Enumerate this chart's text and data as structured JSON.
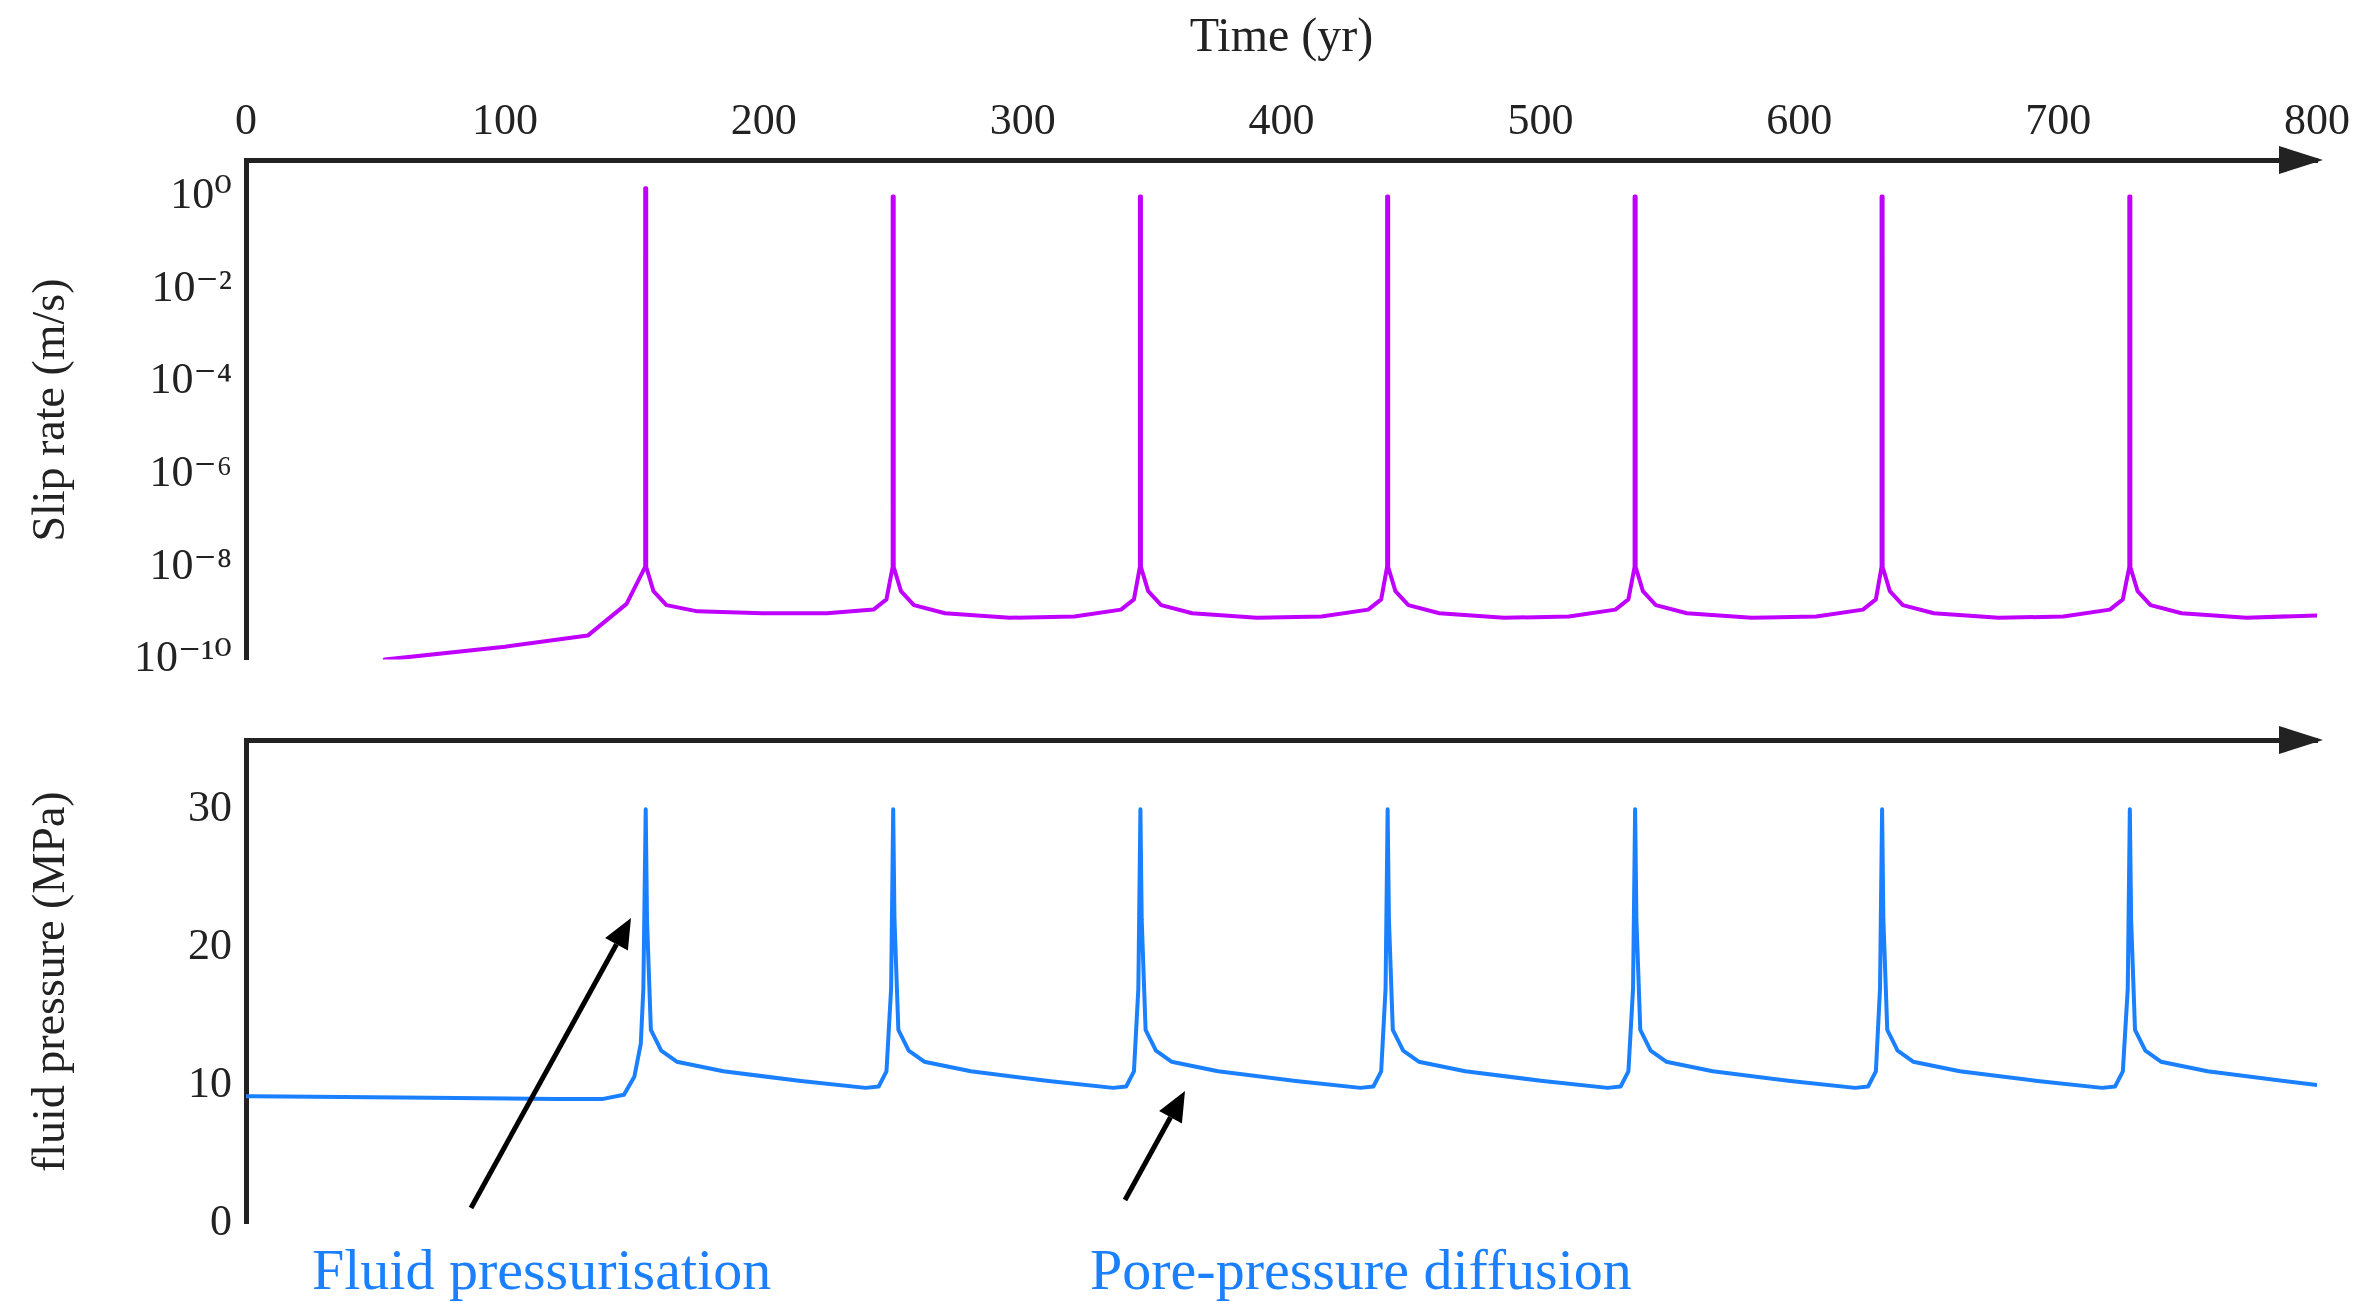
{
  "chart_data": [
    {
      "type": "line",
      "xlabel": "Time (yr)",
      "ylabel": "Slip rate (m/s)",
      "log": "y",
      "grid": false,
      "legend": false,
      "marker": "none",
      "line_style": "solid",
      "xlim": [
        0,
        800
      ],
      "xticks": [
        0,
        100,
        200,
        300,
        400,
        500,
        600,
        700,
        800
      ],
      "ylim": [
        1e-10,
        6
      ],
      "yticks": [
        {
          "value": 1e-10,
          "label": "10⁻¹⁰"
        },
        {
          "value": 1e-08,
          "label": "10⁻⁸"
        },
        {
          "value": 1e-06,
          "label": "10⁻⁶"
        },
        {
          "value": 0.0001,
          "label": "10⁻⁴"
        },
        {
          "value": 0.01,
          "label": "10⁻²"
        },
        {
          "value": 1,
          "label": "10⁰"
        }
      ],
      "series": [
        {
          "color": "#bf00ff",
          "x": [
            53.6,
            100,
            132,
            147,
            154.2,
            154.2,
            154.6,
            154.6,
            157.4,
            162.4,
            174.4,
            199.4,
            224.4,
            242.4,
            247.4,
            249.8,
            249.8,
            250.2,
            250.2,
            253,
            258,
            270,
            295,
            320,
            338,
            343,
            345.3,
            345.3,
            345.7,
            345.7,
            348.5,
            353.5,
            365.5,
            390.5,
            415.5,
            433.5,
            438.5,
            440.8,
            440.8,
            441.2,
            441.2,
            444,
            449,
            461,
            486,
            511,
            529,
            534,
            536.4,
            536.4,
            536.8,
            536.8,
            539.6,
            544.6,
            556.6,
            581.6,
            606.6,
            624.6,
            629.6,
            631.8,
            631.8,
            632.2,
            632.2,
            635,
            640,
            652,
            677,
            702,
            720,
            725,
            727.5,
            727.5,
            727.9,
            727.9,
            730.7,
            735.7,
            747.7,
            772.7,
            800
          ],
          "values": [
            1e-10,
            1.9e-10,
            3.3e-10,
            1.6e-09,
            1e-08,
            1.5,
            1.5,
            1e-08,
            3e-09,
            1.5e-09,
            1.1e-09,
            1e-09,
            1e-09,
            1.2e-09,
            2e-09,
            1e-08,
            1,
            1,
            1e-08,
            3e-09,
            1.5e-09,
            1e-09,
            8e-10,
            8.5e-10,
            1.2e-09,
            2e-09,
            1e-08,
            1,
            1,
            1e-08,
            3e-09,
            1.5e-09,
            1e-09,
            8e-10,
            8.5e-10,
            1.2e-09,
            2e-09,
            1e-08,
            1,
            1,
            1e-08,
            3e-09,
            1.5e-09,
            1e-09,
            8e-10,
            8.5e-10,
            1.2e-09,
            2e-09,
            1e-08,
            1,
            1,
            1e-08,
            3e-09,
            1.5e-09,
            1e-09,
            8e-10,
            8.5e-10,
            1.2e-09,
            2e-09,
            1e-08,
            1,
            1,
            1e-08,
            3e-09,
            1.5e-09,
            1e-09,
            8e-10,
            8.5e-10,
            1.2e-09,
            2e-09,
            1e-08,
            1,
            1,
            1e-08,
            3e-09,
            1.5e-09,
            1e-09,
            8e-10,
            9e-10
          ]
        }
      ]
    },
    {
      "type": "line",
      "ylabel": "fluid pressure (MPa)",
      "grid": false,
      "legend": false,
      "marker": "none",
      "line_style": "solid",
      "tick_labels": "y",
      "xlim": [
        0,
        800
      ],
      "ylim": [
        0,
        35
      ],
      "yticks": [
        0,
        10,
        20,
        30
      ],
      "series": [
        {
          "color": "#1a80ff",
          "x": [
            0,
            60,
            120,
            138,
            146,
            150,
            152.5,
            153.5,
            154.4,
            154.9,
            156.4,
            160.4,
            166.4,
            184.4,
            214.4,
            239.4,
            244.4,
            247.4,
            249.2,
            250,
            250.5,
            252,
            256,
            262,
            280,
            310,
            335,
            340,
            343,
            344.7,
            345.5,
            346,
            347.5,
            351.5,
            357.5,
            375.5,
            405.5,
            430.5,
            435.5,
            438.5,
            440.2,
            441,
            441.5,
            443,
            447,
            453,
            471,
            501,
            526,
            531,
            534,
            535.8,
            536.6,
            537.1,
            538.6,
            542.6,
            548.6,
            566.6,
            596.6,
            621.6,
            626.6,
            629.6,
            631.2,
            632,
            632.5,
            634,
            638,
            644,
            662,
            692,
            717,
            722,
            725,
            726.9,
            727.7,
            728.2,
            729.7,
            733.7,
            739.7,
            757.7,
            800
          ],
          "values": [
            9.2,
            9.1,
            9.0,
            9.0,
            9.3,
            10.6,
            13,
            17,
            30,
            22,
            14,
            12.5,
            11.7,
            11,
            10.3,
            9.8,
            9.9,
            11,
            17,
            30,
            22,
            14,
            12.5,
            11.7,
            11,
            10.3,
            9.8,
            9.9,
            11,
            17,
            30,
            22,
            14,
            12.5,
            11.7,
            11,
            10.3,
            9.8,
            9.9,
            11,
            17,
            30,
            22,
            14,
            12.5,
            11.7,
            11,
            10.3,
            9.8,
            9.9,
            11,
            17,
            30,
            22,
            14,
            12.5,
            11.7,
            11,
            10.3,
            9.8,
            9.9,
            11,
            17,
            30,
            22,
            14,
            12.5,
            11.7,
            11,
            10.3,
            9.8,
            9.9,
            11,
            17,
            30,
            22,
            14,
            12.5,
            11.7,
            11,
            10.0
          ]
        }
      ],
      "annotations": [
        "Fluid pressurisation",
        "Pore-pressure diffusion"
      ]
    }
  ]
}
